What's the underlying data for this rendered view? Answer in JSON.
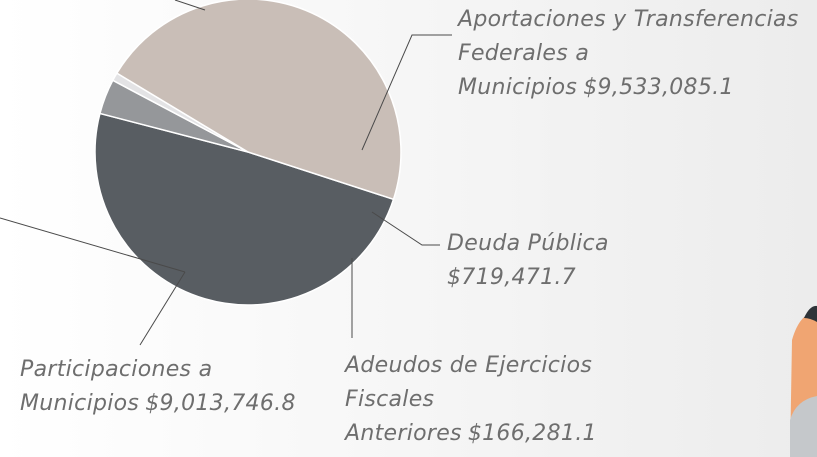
{
  "chart_data": {
    "type": "pie",
    "categories": [
      "Aportaciones y Transferencias Federales a Municipios",
      "Deuda Pública",
      "Adeudos de Ejercicios Fiscales Anteriores",
      "Participaciones a Municipios"
    ],
    "values": [
      9533085.1,
      719471.7,
      166281.1,
      9013746.8
    ],
    "value_labels": [
      "$9,533,085.1",
      "$719,471.7",
      "$166,281.1",
      "$9,013,746.8"
    ],
    "colors": [
      "#585d62",
      "#95979a",
      "#e3e3e5",
      "#c9beb7"
    ]
  }
}
